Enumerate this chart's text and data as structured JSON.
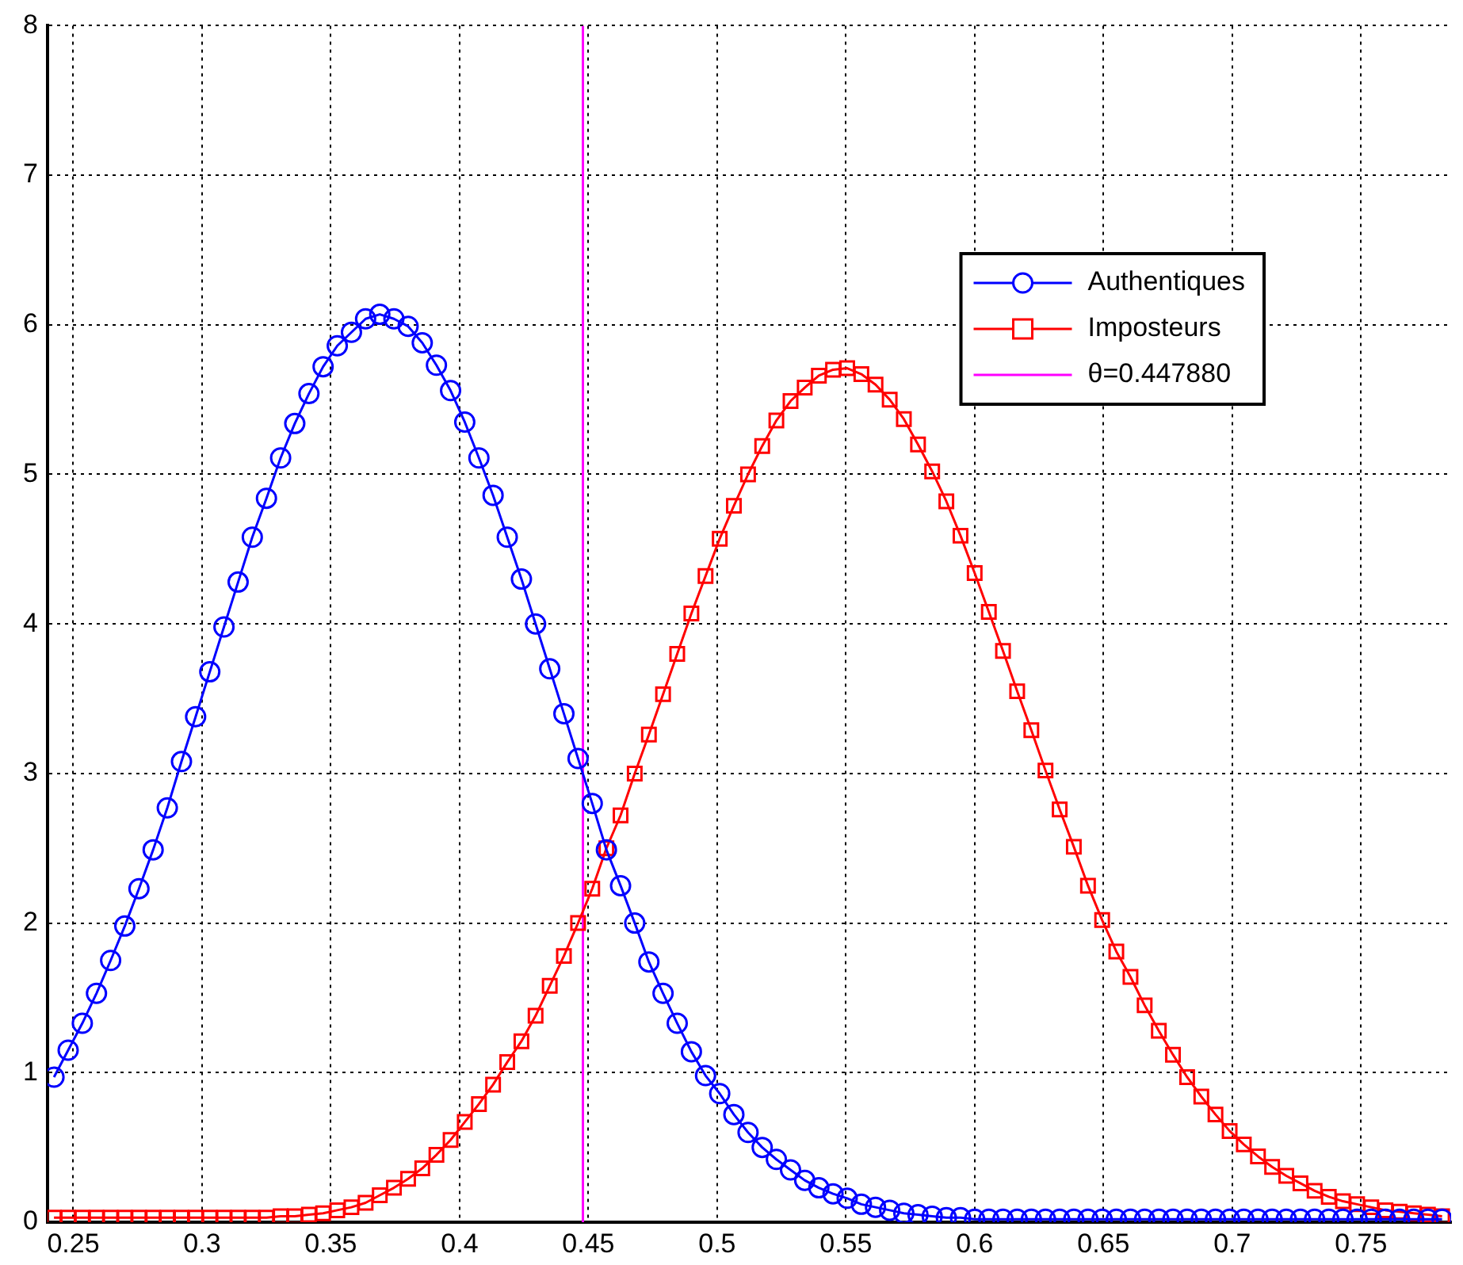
{
  "chart_data": {
    "type": "line",
    "x": [
      0.2425,
      0.248,
      0.2535,
      0.259,
      0.2645,
      0.27,
      0.2755,
      0.281,
      0.2865,
      0.292,
      0.2975,
      0.303,
      0.3085,
      0.314,
      0.3195,
      0.325,
      0.3305,
      0.336,
      0.3415,
      0.347,
      0.3525,
      0.358,
      0.3635,
      0.369,
      0.3745,
      0.38,
      0.3855,
      0.391,
      0.3965,
      0.402,
      0.4075,
      0.413,
      0.4185,
      0.424,
      0.4295,
      0.435,
      0.4405,
      0.446,
      0.4515,
      0.457,
      0.4625,
      0.468,
      0.4735,
      0.479,
      0.4845,
      0.49,
      0.4955,
      0.501,
      0.5065,
      0.512,
      0.5175,
      0.523,
      0.5285,
      0.534,
      0.5395,
      0.545,
      0.5505,
      0.556,
      0.5615,
      0.567,
      0.5725,
      0.578,
      0.5835,
      0.589,
      0.5945,
      0.6,
      0.6055,
      0.611,
      0.6165,
      0.622,
      0.6275,
      0.633,
      0.6385,
      0.644,
      0.6495,
      0.655,
      0.6605,
      0.666,
      0.6715,
      0.677,
      0.6825,
      0.688,
      0.6935,
      0.699,
      0.7045,
      0.71,
      0.7155,
      0.721,
      0.7265,
      0.732,
      0.7375,
      0.743,
      0.7485,
      0.754,
      0.7595,
      0.765,
      0.7705,
      0.776,
      0.7815
    ],
    "series": [
      {
        "name": "Authentiques",
        "color": "#0000ff",
        "marker": "circle",
        "values": [
          0.97,
          1.15,
          1.33,
          1.53,
          1.75,
          1.98,
          2.23,
          2.49,
          2.77,
          3.08,
          3.38,
          3.68,
          3.98,
          4.28,
          4.58,
          4.84,
          5.11,
          5.34,
          5.54,
          5.72,
          5.86,
          5.95,
          6.04,
          6.07,
          6.04,
          5.99,
          5.88,
          5.73,
          5.56,
          5.35,
          5.11,
          4.86,
          4.58,
          4.3,
          4.0,
          3.7,
          3.4,
          3.1,
          2.8,
          2.49,
          2.25,
          2.0,
          1.74,
          1.53,
          1.33,
          1.14,
          0.98,
          0.86,
          0.72,
          0.6,
          0.5,
          0.42,
          0.35,
          0.28,
          0.23,
          0.19,
          0.16,
          0.12,
          0.1,
          0.08,
          0.06,
          0.05,
          0.04,
          0.03,
          0.03,
          0.02,
          0.02,
          0.02,
          0.02,
          0.02,
          0.02,
          0.02,
          0.02,
          0.02,
          0.02,
          0.02,
          0.02,
          0.02,
          0.02,
          0.02,
          0.02,
          0.02,
          0.02,
          0.02,
          0.02,
          0.02,
          0.02,
          0.02,
          0.02,
          0.02,
          0.02,
          0.02,
          0.02,
          0.02,
          0.02,
          0.02,
          0.02,
          0.02,
          0.02
        ]
      },
      {
        "name": "Imposteurs",
        "color": "#ff0000",
        "marker": "square",
        "values": [
          0.03,
          0.03,
          0.03,
          0.03,
          0.03,
          0.03,
          0.03,
          0.03,
          0.03,
          0.03,
          0.03,
          0.03,
          0.03,
          0.03,
          0.03,
          0.03,
          0.04,
          0.04,
          0.05,
          0.06,
          0.08,
          0.1,
          0.13,
          0.18,
          0.23,
          0.29,
          0.36,
          0.45,
          0.55,
          0.67,
          0.79,
          0.92,
          1.07,
          1.21,
          1.38,
          1.58,
          1.78,
          2.0,
          2.23,
          2.5,
          2.72,
          3.0,
          3.26,
          3.53,
          3.8,
          4.07,
          4.32,
          4.57,
          4.79,
          5.0,
          5.19,
          5.36,
          5.49,
          5.58,
          5.66,
          5.7,
          5.71,
          5.67,
          5.6,
          5.5,
          5.37,
          5.2,
          5.02,
          4.82,
          4.59,
          4.34,
          4.08,
          3.82,
          3.55,
          3.29,
          3.02,
          2.76,
          2.51,
          2.25,
          2.02,
          1.81,
          1.64,
          1.45,
          1.28,
          1.12,
          0.97,
          0.84,
          0.72,
          0.61,
          0.52,
          0.44,
          0.37,
          0.31,
          0.26,
          0.21,
          0.17,
          0.14,
          0.12,
          0.1,
          0.08,
          0.07,
          0.06,
          0.05,
          0.04
        ]
      },
      {
        "name": "θ=0.447880",
        "color": "#ff00ff",
        "marker": "none",
        "x": [
          0.44788,
          0.44788
        ],
        "values": [
          0,
          8
        ]
      }
    ],
    "xlim": [
      0.24,
      0.785
    ],
    "xticks": [
      0.25,
      0.3,
      0.35,
      0.4,
      0.45,
      0.5,
      0.55,
      0.6,
      0.65,
      0.7,
      0.75
    ],
    "ylim": [
      0,
      8
    ],
    "yticks": [
      0,
      1,
      2,
      3,
      4,
      5,
      6,
      7,
      8
    ],
    "grid": true,
    "legend": "top right"
  }
}
